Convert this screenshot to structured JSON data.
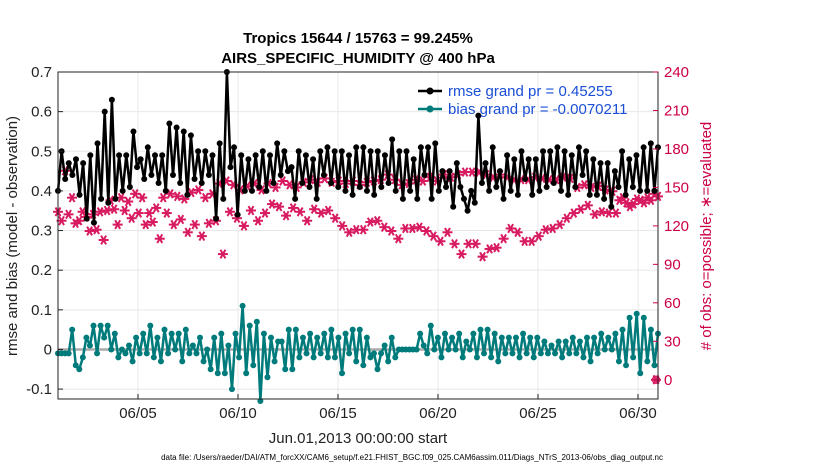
{
  "chart_data": {
    "type": "line",
    "title_line1": "Tropics 15644 / 15763 = 99.245%",
    "title_line2": "AIRS_SPECIFIC_HUMIDITY @ 400 hPa",
    "xlabel": "Jun.01,2013 00:00:00 start",
    "ylabel_left": "rmse and bias (model - observation)",
    "ylabel_right": "# of obs: o=possible; ∗=evaluated",
    "footer": "data file: /Users/raeder/DAI/ATM_forcXX/CAM6_setup/f.e21.FHIST_BGC.f09_025.CAM6assim.011/Diags_NTrS_2013-06/obs_diag_output.nc",
    "x_range": [
      1,
      31
    ],
    "x_ticks": [
      5,
      10,
      15,
      20,
      25,
      30
    ],
    "x_tick_labels": [
      "06/05",
      "06/10",
      "06/15",
      "06/20",
      "06/25",
      "06/30"
    ],
    "ylim_left": [
      -0.125,
      0.7
    ],
    "y_ticks_left": [
      -0.1,
      0,
      0.1,
      0.2,
      0.3,
      0.4,
      0.5,
      0.6,
      0.7
    ],
    "y_tick_labels_left": [
      "-0.1",
      "0",
      "0.1",
      "0.2",
      "0.3",
      "0.4",
      "0.5",
      "0.6",
      "0.7"
    ],
    "ylim_right": [
      -15,
      240
    ],
    "y_ticks_right": [
      0,
      30,
      60,
      90,
      120,
      150,
      180,
      210,
      240
    ],
    "y_tick_labels_right": [
      "0",
      "30",
      "60",
      "90",
      "120",
      "150",
      "180",
      "210",
      "240"
    ],
    "grid": true,
    "legend_position": "top-right",
    "colors": {
      "rmse": "#000000",
      "bias": "#007b7b",
      "obs": "#d81b60",
      "zero_line": "#aaaaaa",
      "grid": "#e8e8e8",
      "right_axis": "#cc0044",
      "legend_text": "#1a4fd6"
    },
    "series": [
      {
        "name": "rmse grand pr = 0.45255",
        "axis": "left",
        "values": [
          0.4,
          0.5,
          0.43,
          0.47,
          0.44,
          0.48,
          0.39,
          0.47,
          0.33,
          0.49,
          0.32,
          0.52,
          0.38,
          0.6,
          0.37,
          0.63,
          0.38,
          0.49,
          0.4,
          0.49,
          0.41,
          0.55,
          0.46,
          0.48,
          0.43,
          0.51,
          0.44,
          0.49,
          0.42,
          0.49,
          0.4,
          0.57,
          0.44,
          0.56,
          0.42,
          0.55,
          0.39,
          0.54,
          0.43,
          0.5,
          0.42,
          0.5,
          0.44,
          0.49,
          0.33,
          0.52,
          0.38,
          0.7,
          0.46,
          0.51,
          0.34,
          0.49,
          0.4,
          0.48,
          0.4,
          0.49,
          0.41,
          0.5,
          0.4,
          0.49,
          0.42,
          0.52,
          0.44,
          0.5,
          0.45,
          0.46,
          0.38,
          0.5,
          0.42,
          0.49,
          0.41,
          0.48,
          0.38,
          0.5,
          0.44,
          0.51,
          0.42,
          0.5,
          0.41,
          0.5,
          0.4,
          0.49,
          0.39,
          0.51,
          0.41,
          0.51,
          0.4,
          0.5,
          0.39,
          0.5,
          0.41,
          0.49,
          0.42,
          0.53,
          0.4,
          0.5,
          0.38,
          0.5,
          0.4,
          0.48,
          0.38,
          0.51,
          0.44,
          0.51,
          0.38,
          0.52,
          0.4,
          0.45,
          0.41,
          0.45,
          0.36,
          0.47,
          0.41,
          0.38,
          0.35,
          0.4,
          0.37,
          0.59,
          0.42,
          0.47,
          0.4,
          0.51,
          0.41,
          0.45,
          0.38,
          0.49,
          0.4,
          0.48,
          0.39,
          0.5,
          0.43,
          0.48,
          0.39,
          0.48,
          0.4,
          0.5,
          0.41,
          0.5,
          0.42,
          0.51,
          0.4,
          0.5,
          0.39,
          0.49,
          0.41,
          0.51,
          0.44,
          0.5,
          0.39,
          0.48,
          0.39,
          0.47,
          0.38,
          0.47,
          0.36,
          0.45,
          0.41,
          0.5,
          0.39,
          0.48,
          0.41,
          0.49,
          0.4,
          0.51,
          0.4,
          0.52,
          0.4,
          0.51
        ],
        "x_step_days": 0.1739
      },
      {
        "name": "bias grand pr = -0.0070211",
        "axis": "left",
        "values": [
          -0.01,
          -0.01,
          -0.01,
          -0.01,
          0.05,
          -0.04,
          -0.05,
          -0.02,
          0.03,
          0.01,
          0.06,
          -0.01,
          0.06,
          0.03,
          0.06,
          0.0,
          0.04,
          -0.02,
          0.0,
          -0.01,
          0.01,
          -0.03,
          0.03,
          -0.01,
          0.04,
          -0.01,
          0.06,
          -0.02,
          0.03,
          -0.03,
          0.05,
          -0.01,
          0.04,
          0.0,
          0.04,
          -0.03,
          0.05,
          -0.01,
          0.01,
          -0.01,
          0.03,
          -0.03,
          0.0,
          -0.05,
          0.03,
          -0.06,
          0.04,
          -0.06,
          0.01,
          -0.1,
          0.04,
          -0.02,
          0.11,
          -0.06,
          0.06,
          -0.04,
          0.07,
          -0.13,
          0.04,
          -0.07,
          0.03,
          -0.03,
          0.02,
          0.02,
          -0.05,
          0.05,
          -0.05,
          0.05,
          -0.02,
          0.03,
          -0.01,
          0.04,
          -0.02,
          0.03,
          -0.01,
          0.04,
          -0.02,
          0.05,
          -0.02,
          0.03,
          -0.06,
          0.04,
          -0.01,
          0.05,
          -0.03,
          0.05,
          -0.04,
          0.03,
          -0.02,
          -0.01,
          -0.05,
          -0.01,
          0.01,
          -0.03,
          0.03,
          -0.02,
          0.0,
          0.0,
          0.0,
          0.0,
          0.0,
          0.0,
          0.04,
          0.01,
          -0.01,
          0.06,
          0.0,
          0.03,
          -0.02,
          0.04,
          0.0,
          0.03,
          0.0,
          0.04,
          -0.02,
          0.02,
          0.0,
          0.04,
          -0.02,
          0.05,
          -0.01,
          0.05,
          -0.02,
          0.04,
          -0.03,
          0.03,
          -0.01,
          0.03,
          -0.01,
          0.03,
          -0.02,
          0.04,
          -0.01,
          0.03,
          -0.02,
          0.03,
          -0.01,
          0.02,
          -0.01,
          0.01,
          -0.01,
          0.02,
          -0.02,
          0.02,
          -0.01,
          0.03,
          -0.01,
          0.02,
          -0.02,
          0.03,
          -0.03,
          0.03,
          -0.01,
          0.04,
          0.0,
          0.03,
          0.0,
          0.04,
          -0.03,
          0.05,
          -0.04,
          0.08,
          -0.02,
          0.09,
          -0.06,
          0.08,
          -0.03,
          0.05,
          -0.04,
          0.04
        ]
      },
      {
        "name": "# of obs possible (o)",
        "axis": "right",
        "values": [
          131,
          124,
          163,
          129,
          142,
          122,
          124,
          131,
          127,
          116,
          129,
          117,
          131,
          109,
          132,
          140,
          133,
          121,
          142,
          132,
          139,
          126,
          145,
          130,
          142,
          121,
          130,
          123,
          134,
          110,
          142,
          130,
          145,
          121,
          143,
          125,
          141,
          115,
          146,
          121,
          148,
          112,
          142,
          122,
          145,
          124,
          153,
          98,
          155,
          131,
          152,
          126,
          148,
          120,
          151,
          132,
          153,
          124,
          148,
          130,
          153,
          137,
          150,
          135,
          155,
          128,
          152,
          134,
          150,
          131,
          154,
          124,
          156,
          133,
          154,
          130,
          157,
          132,
          154,
          126,
          155,
          120,
          153,
          115,
          155,
          117,
          152,
          117,
          154,
          123,
          155,
          124,
          156,
          119,
          160,
          116,
          156,
          110,
          152,
          118,
          153,
          118,
          156,
          119,
          155,
          116,
          158,
          112,
          155,
          108,
          160,
          115,
          158,
          106,
          160,
          98,
          162,
          106,
          162,
          106,
          162,
          96,
          160,
          102,
          158,
          103,
          160,
          110,
          158,
          118,
          156,
          115,
          156,
          108,
          156,
          108,
          158,
          112,
          157,
          117,
          156,
          118,
          156,
          121,
          158,
          126,
          157,
          130,
          150,
          133,
          152,
          136,
          150,
          129,
          151,
          131,
          148,
          130,
          147,
          130,
          140,
          142,
          138,
          135,
          137,
          141,
          140,
          138,
          142,
          140,
          145,
          143
        ],
        "x_step_days": 0.1739
      },
      {
        "name": "# of obs evaluated (*)",
        "axis": "right",
        "values": [
          131,
          124,
          163,
          129,
          142,
          122,
          124,
          131,
          127,
          116,
          129,
          117,
          131,
          109,
          132,
          140,
          133,
          121,
          142,
          132,
          139,
          126,
          145,
          130,
          142,
          121,
          130,
          123,
          134,
          110,
          142,
          130,
          145,
          121,
          143,
          125,
          141,
          115,
          146,
          121,
          148,
          112,
          142,
          122,
          145,
          124,
          153,
          98,
          155,
          131,
          152,
          126,
          148,
          120,
          151,
          132,
          153,
          124,
          148,
          130,
          153,
          137,
          150,
          135,
          155,
          128,
          152,
          134,
          150,
          131,
          154,
          124,
          156,
          133,
          154,
          130,
          157,
          132,
          154,
          126,
          155,
          120,
          153,
          115,
          155,
          117,
          152,
          117,
          154,
          123,
          155,
          124,
          156,
          119,
          160,
          116,
          156,
          110,
          152,
          118,
          153,
          118,
          156,
          119,
          155,
          116,
          158,
          112,
          155,
          108,
          160,
          115,
          158,
          106,
          160,
          98,
          162,
          106,
          162,
          106,
          162,
          96,
          160,
          102,
          158,
          103,
          160,
          110,
          158,
          118,
          156,
          115,
          156,
          108,
          156,
          108,
          158,
          112,
          157,
          117,
          156,
          118,
          156,
          121,
          158,
          126,
          157,
          130,
          150,
          133,
          152,
          136,
          150,
          129,
          151,
          131,
          148,
          130,
          147,
          130,
          140,
          142,
          138,
          135,
          137,
          141,
          140,
          138,
          142,
          140,
          145,
          143
        ]
      }
    ],
    "legend": [
      "rmse grand pr = 0.45255",
      "bias grand pr = -0.0070211"
    ]
  }
}
